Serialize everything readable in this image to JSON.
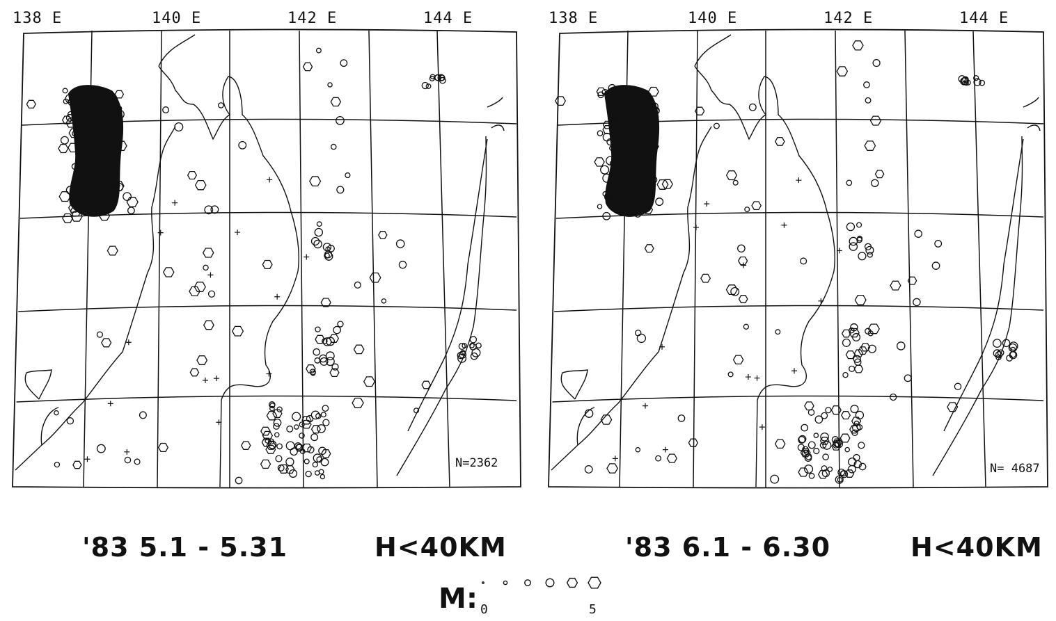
{
  "panels": [
    {
      "id": "may",
      "lon_labels": [
        "138 E",
        "140 E",
        "142 E",
        "144 E"
      ],
      "count": "N=2362",
      "period": "'83  5.1 - 5.31",
      "depth": "H<40KM"
    },
    {
      "id": "june",
      "lon_labels": [
        "138 E",
        "140 E",
        "142 E",
        "144 E"
      ],
      "count": "N= 4687",
      "period": "'83  6.1 - 6.30",
      "depth": "H<40KM"
    }
  ],
  "legend": {
    "title": "M",
    "colon": ":",
    "min": "0",
    "max": "5",
    "magnitudes": [
      0,
      1,
      2,
      3,
      4,
      5
    ]
  }
}
